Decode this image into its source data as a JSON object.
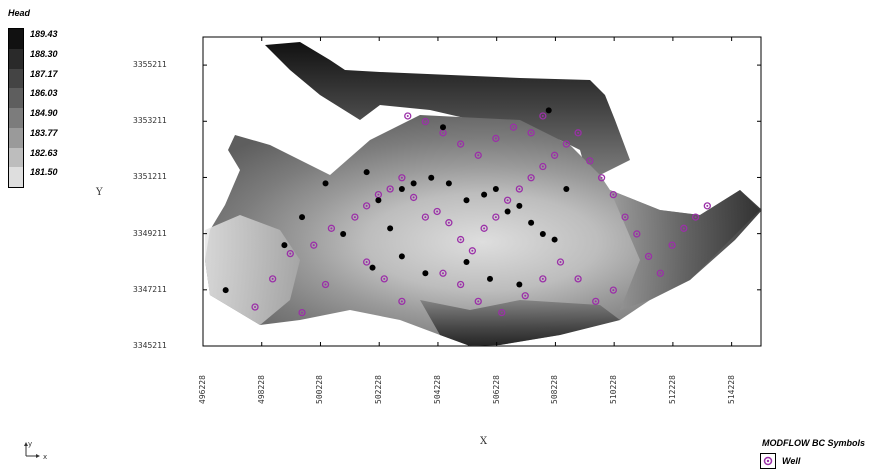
{
  "legend": {
    "title": "Head",
    "values": [
      "189.43",
      "188.30",
      "187.17",
      "186.03",
      "184.90",
      "183.77",
      "182.63",
      "181.50"
    ],
    "colors": [
      "#111111",
      "#2a2a2a",
      "#444444",
      "#5e5e5e",
      "#7c7c7c",
      "#9a9a9a",
      "#bdbdbd",
      "#dedede"
    ]
  },
  "axes": {
    "x_label": "X",
    "y_label": "Y",
    "x_ticks": [
      "496228",
      "498228",
      "500228",
      "502228",
      "504228",
      "506228",
      "508228",
      "510228",
      "512228",
      "514228"
    ],
    "y_ticks": [
      "3355211",
      "3353211",
      "3351211",
      "3349211",
      "3347211",
      "3345211"
    ]
  },
  "symbols": {
    "title": "MODFLOW BC Symbols",
    "well_label": "Well",
    "well_color": "#9b30a8"
  },
  "colors": {
    "black_point": "#000000",
    "frame": "#000000"
  },
  "chart_data": {
    "type": "scatter",
    "x_range": [
      496228,
      515228
    ],
    "y_range": [
      3345211,
      3356211
    ],
    "series": [
      {
        "name": "Well",
        "marker": "purple-hexagon",
        "points": [
          [
            498600,
            3347600
          ],
          [
            499200,
            3348500
          ],
          [
            500000,
            3348800
          ],
          [
            500600,
            3349400
          ],
          [
            501400,
            3349800
          ],
          [
            501800,
            3350200
          ],
          [
            502200,
            3350600
          ],
          [
            502600,
            3350800
          ],
          [
            503000,
            3351200
          ],
          [
            503400,
            3350500
          ],
          [
            503800,
            3349800
          ],
          [
            504200,
            3350000
          ],
          [
            504600,
            3349600
          ],
          [
            505000,
            3349000
          ],
          [
            505400,
            3348600
          ],
          [
            505800,
            3349400
          ],
          [
            506200,
            3349800
          ],
          [
            506600,
            3350400
          ],
          [
            507000,
            3350800
          ],
          [
            507400,
            3351200
          ],
          [
            507800,
            3351600
          ],
          [
            508200,
            3352000
          ],
          [
            508600,
            3352400
          ],
          [
            509000,
            3352800
          ],
          [
            509400,
            3351800
          ],
          [
            509800,
            3351200
          ],
          [
            510200,
            3350600
          ],
          [
            510600,
            3349800
          ],
          [
            511000,
            3349200
          ],
          [
            511400,
            3348400
          ],
          [
            511800,
            3347800
          ],
          [
            512200,
            3348800
          ],
          [
            512600,
            3349400
          ],
          [
            513000,
            3349800
          ],
          [
            513400,
            3350200
          ],
          [
            504400,
            3347800
          ],
          [
            505000,
            3347400
          ],
          [
            505600,
            3346800
          ],
          [
            506400,
            3346400
          ],
          [
            507200,
            3347000
          ],
          [
            507800,
            3347600
          ],
          [
            508400,
            3348200
          ],
          [
            509000,
            3347600
          ],
          [
            509600,
            3346800
          ],
          [
            510200,
            3347200
          ],
          [
            503200,
            3353400
          ],
          [
            503800,
            3353200
          ],
          [
            504400,
            3352800
          ],
          [
            505000,
            3352400
          ],
          [
            505600,
            3352000
          ],
          [
            506200,
            3352600
          ],
          [
            506800,
            3353000
          ],
          [
            507400,
            3352800
          ],
          [
            507800,
            3353400
          ],
          [
            503000,
            3346800
          ],
          [
            502400,
            3347600
          ],
          [
            501800,
            3348200
          ],
          [
            500400,
            3347400
          ],
          [
            499600,
            3346400
          ],
          [
            498000,
            3346600
          ]
        ]
      },
      {
        "name": "",
        "marker": "black-dot",
        "points": [
          [
            497000,
            3347200
          ],
          [
            499000,
            3348800
          ],
          [
            499600,
            3349800
          ],
          [
            500400,
            3351000
          ],
          [
            501800,
            3351400
          ],
          [
            502200,
            3350400
          ],
          [
            502600,
            3349400
          ],
          [
            503000,
            3350800
          ],
          [
            503400,
            3351000
          ],
          [
            504000,
            3351200
          ],
          [
            504600,
            3351000
          ],
          [
            505200,
            3350400
          ],
          [
            505800,
            3350600
          ],
          [
            506200,
            3350800
          ],
          [
            506600,
            3350000
          ],
          [
            507000,
            3350200
          ],
          [
            507400,
            3349600
          ],
          [
            507800,
            3349200
          ],
          [
            508200,
            3349000
          ],
          [
            508600,
            3350800
          ],
          [
            504400,
            3353000
          ],
          [
            505200,
            3348200
          ],
          [
            506000,
            3347600
          ],
          [
            507000,
            3347400
          ],
          [
            508000,
            3353600
          ],
          [
            503000,
            3348400
          ],
          [
            503800,
            3347800
          ],
          [
            501000,
            3349200
          ],
          [
            502000,
            3348000
          ]
        ]
      }
    ]
  }
}
